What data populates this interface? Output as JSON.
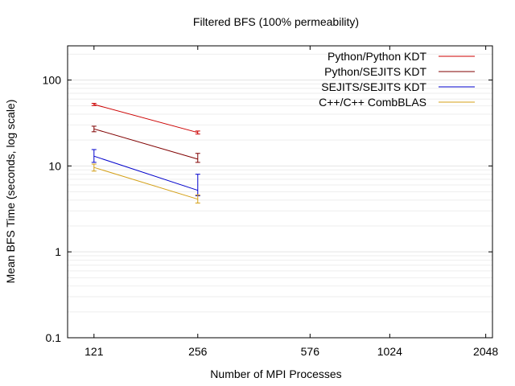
{
  "chart_data": {
    "type": "line",
    "title": "Filtered BFS (100% permeability)",
    "xlabel": "Number of MPI Processes",
    "ylabel": "Mean BFS Time (seconds, log scale)",
    "x_scale": "log2",
    "y_scale": "log10",
    "xlim": [
      100,
      2150
    ],
    "ylim": [
      0.1,
      250
    ],
    "x_ticks": [
      121,
      256,
      576,
      1024,
      2048
    ],
    "x_tick_labels": [
      "121",
      "256",
      "576",
      "1024",
      "2048"
    ],
    "y_ticks": [
      0.1,
      1,
      10,
      100
    ],
    "y_tick_labels": [
      "0.1",
      "1",
      "10",
      "100"
    ],
    "grid": "horizontal minor lines",
    "legend_position": "top-right",
    "series": [
      {
        "name": "Python/Python KDT",
        "color": "#cc0000",
        "x": [
          121,
          256
        ],
        "y": [
          52,
          24.5
        ],
        "err_low": [
          50.5,
          23.5
        ],
        "err_high": [
          53.5,
          25.5
        ]
      },
      {
        "name": "Python/SEJITS KDT",
        "color": "#800000",
        "x": [
          121,
          256
        ],
        "y": [
          27,
          12
        ],
        "err_low": [
          25,
          11
        ],
        "err_high": [
          29,
          14
        ]
      },
      {
        "name": "SEJITS/SEJITS KDT",
        "color": "#0000cc",
        "x": [
          121,
          256
        ],
        "y": [
          13,
          5.2
        ],
        "err_low": [
          11,
          4.5
        ],
        "err_high": [
          15.5,
          8
        ]
      },
      {
        "name": "C++/C++ CombBLAS",
        "color": "#d4a017",
        "x": [
          121,
          256
        ],
        "y": [
          9.6,
          4.1
        ],
        "err_low": [
          8.7,
          3.7
        ],
        "err_high": [
          10.5,
          4.6
        ]
      }
    ]
  }
}
